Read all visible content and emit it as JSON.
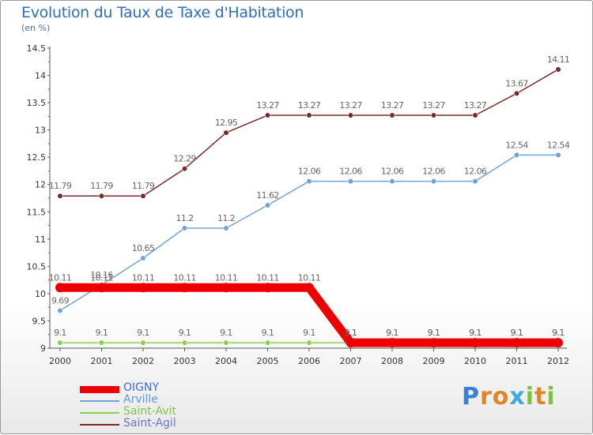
{
  "chart_data": {
    "type": "line",
    "title": "Evolution du Taux de Taxe d'Habitation",
    "unit_label": "(en %)",
    "x": [
      "2000",
      "2001",
      "2002",
      "2003",
      "2004",
      "2005",
      "2006",
      "2007",
      "2008",
      "2009",
      "2010",
      "2011",
      "2012"
    ],
    "y_ticks": [
      "9",
      "9.5",
      "10",
      "10.5",
      "11",
      "11.5",
      "12",
      "12.5",
      "13",
      "13.5",
      "14",
      "14.5"
    ],
    "ylim": [
      9,
      14.5
    ],
    "grid": false,
    "legend_position": "bottom-left",
    "series": [
      {
        "name": "OIGNY",
        "color": "#ee0000",
        "text_color": "#3b6fd6",
        "width": "thick",
        "values": [
          10.11,
          10.11,
          10.11,
          10.11,
          10.11,
          10.11,
          10.11,
          9.1,
          9.1,
          9.1,
          9.1,
          9.1,
          9.1
        ],
        "labels": [
          "10.11",
          "10.11",
          "10.11",
          "10.11",
          "10.11",
          "10.11",
          "10.11",
          "9.1",
          "9.1",
          "9.1",
          "9.1",
          "9.1",
          "9.1"
        ]
      },
      {
        "name": "Arville",
        "color": "#6fa3d8",
        "text_color": "#5a9ad6",
        "width": "thin",
        "values": [
          9.69,
          10.16,
          10.65,
          11.2,
          11.2,
          11.62,
          12.06,
          12.06,
          12.06,
          12.06,
          12.06,
          12.54,
          12.54
        ],
        "labels": [
          "9.69",
          "10.16",
          "10.65",
          "11.2",
          "11.2",
          "11.62",
          "12.06",
          "12.06",
          "12.06",
          "12.06",
          "12.06",
          "12.54",
          "12.54"
        ]
      },
      {
        "name": "Saint-Avit",
        "color": "#88d24a",
        "text_color": "#7fc44a",
        "width": "thin",
        "values": [
          9.1,
          9.1,
          9.1,
          9.1,
          9.1,
          9.1,
          9.1,
          9.1,
          9.1,
          9.1,
          9.1,
          9.1,
          9.1
        ],
        "labels": [
          "9.1",
          "9.1",
          "9.1",
          "9.1",
          "9.1",
          "9.1",
          "9.1",
          "9.1",
          "9.1",
          "9.1",
          "9.1",
          "9.1",
          "9.1"
        ]
      },
      {
        "name": "Saint-Agil",
        "color": "#7a2a2a",
        "text_color": "#6a74c8",
        "width": "thin",
        "values": [
          11.79,
          11.79,
          11.79,
          12.29,
          12.95,
          13.27,
          13.27,
          13.27,
          13.27,
          13.27,
          13.27,
          13.67,
          14.11
        ],
        "labels": [
          "11.79",
          "11.79",
          "11.79",
          "12.29",
          "12.95",
          "13.27",
          "13.27",
          "13.27",
          "13.27",
          "13.27",
          "13.27",
          "13.67",
          "14.11"
        ]
      }
    ]
  },
  "brand": {
    "letters": [
      {
        "ch": "P",
        "color": "#3d7fd0"
      },
      {
        "ch": "r",
        "color": "#e0862a"
      },
      {
        "ch": "o",
        "color": "#e0862a"
      },
      {
        "ch": "x",
        "color": "#3ea8e0"
      },
      {
        "ch": "i",
        "color": "#7cc242"
      },
      {
        "ch": "t",
        "color": "#e0862a"
      },
      {
        "ch": "i",
        "color": "#7cc242"
      }
    ]
  }
}
